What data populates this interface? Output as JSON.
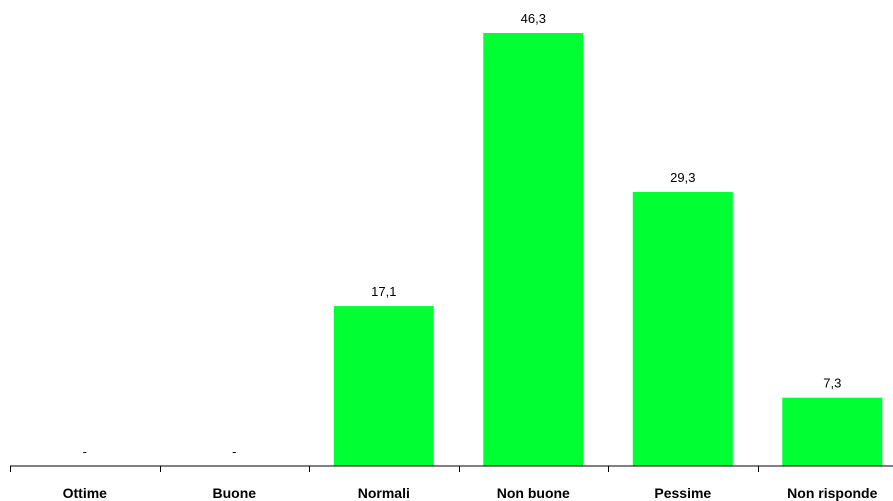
{
  "chart_data": {
    "type": "bar",
    "categories": [
      "Ottime",
      "Buone",
      "Normali",
      "Non buone",
      "Pessime",
      "Non risponde"
    ],
    "values": [
      0,
      0,
      17.1,
      46.3,
      29.3,
      7.3
    ],
    "data_labels": [
      "-",
      "-",
      "17,1",
      "46,3",
      "29,3",
      "7,3"
    ],
    "title": "",
    "xlabel": "",
    "ylabel": "",
    "ylim": [
      0,
      50
    ],
    "grid": false,
    "legend": "none",
    "bar_color": "#00ff33"
  }
}
